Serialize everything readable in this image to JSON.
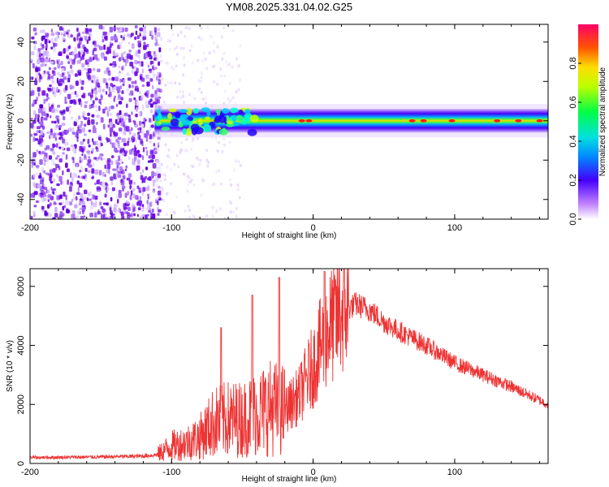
{
  "figure_title": "YM08.2025.331.04.02.G25",
  "chart_data": [
    {
      "type": "heatmap",
      "title": "YM08.2025.331.04.02.G25",
      "xlabel": "Height of straight line (km)",
      "ylabel": "Frequency (Hz)",
      "xlim": [
        -200,
        166
      ],
      "ylim": [
        -50,
        49
      ],
      "xticks": [
        -200,
        -100,
        0,
        100
      ],
      "yticks": [
        -40,
        -20,
        0,
        20,
        40
      ],
      "colorbar": {
        "label": "Normalized spectral amplitude",
        "range": [
          0,
          1
        ],
        "ticks": [
          0.0,
          0.2,
          0.4,
          0.6,
          0.8
        ],
        "colormap": "rainbow (magenta to red)"
      },
      "description_values": {
        "noise_region_x": [
          -200,
          -112
        ],
        "signal_center_frequency": 0,
        "signal_start_x": -112
      }
    },
    {
      "type": "line",
      "xlabel": "Height of straight line (km)",
      "ylabel": "SNR (10 * v/v)",
      "xlim": [
        -200,
        166
      ],
      "ylim": [
        0,
        6600
      ],
      "xticks": [
        -200,
        -100,
        0,
        100
      ],
      "yticks": [
        0,
        2000,
        4000,
        6000
      ],
      "color": "#ee3333",
      "series": [
        {
          "name": "SNR",
          "x": [
            -200,
            -150,
            -120,
            -110,
            -100,
            -90,
            -80,
            -70,
            -60,
            -50,
            -40,
            -30,
            -20,
            -10,
            0,
            10,
            20,
            30,
            40,
            50,
            60,
            80,
            100,
            120,
            140,
            166
          ],
          "values": [
            200,
            220,
            250,
            300,
            600,
            700,
            900,
            1400,
            1500,
            1500,
            1700,
            1900,
            1800,
            2300,
            3300,
            4500,
            5100,
            5400,
            5200,
            4800,
            4500,
            4000,
            3400,
            3000,
            2600,
            2000
          ]
        }
      ],
      "peaks": [
        {
          "x": -65,
          "y": 4600
        },
        {
          "x": -43,
          "y": 5700
        },
        {
          "x": -24,
          "y": 6300
        },
        {
          "x": 8,
          "y": 6500
        }
      ]
    }
  ]
}
